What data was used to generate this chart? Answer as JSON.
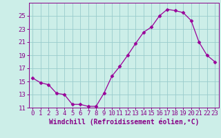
{
  "x": [
    0,
    1,
    2,
    3,
    4,
    5,
    6,
    7,
    8,
    9,
    10,
    11,
    12,
    13,
    14,
    15,
    16,
    17,
    18,
    19,
    20,
    21,
    22,
    23
  ],
  "y": [
    15.5,
    14.8,
    14.5,
    13.2,
    13.0,
    11.5,
    11.5,
    11.2,
    11.2,
    13.2,
    15.8,
    17.3,
    19.0,
    20.8,
    22.5,
    23.3,
    25.0,
    26.0,
    25.8,
    25.5,
    24.3,
    21.0,
    19.0,
    18.0
  ],
  "line_color": "#990099",
  "marker": "D",
  "marker_size": 2.5,
  "bg_color": "#cceee8",
  "grid_color": "#99cccc",
  "xlabel": "Windchill (Refroidissement éolien,°C)",
  "xlabel_fontsize": 7,
  "ylim": [
    11,
    27
  ],
  "xlim": [
    -0.5,
    23.5
  ],
  "yticks": [
    11,
    13,
    15,
    17,
    19,
    21,
    23,
    25
  ],
  "xticks": [
    0,
    1,
    2,
    3,
    4,
    5,
    6,
    7,
    8,
    9,
    10,
    11,
    12,
    13,
    14,
    15,
    16,
    17,
    18,
    19,
    20,
    21,
    22,
    23
  ],
  "tick_color": "#880088",
  "tick_fontsize": 6.5,
  "spine_color": "#880088"
}
